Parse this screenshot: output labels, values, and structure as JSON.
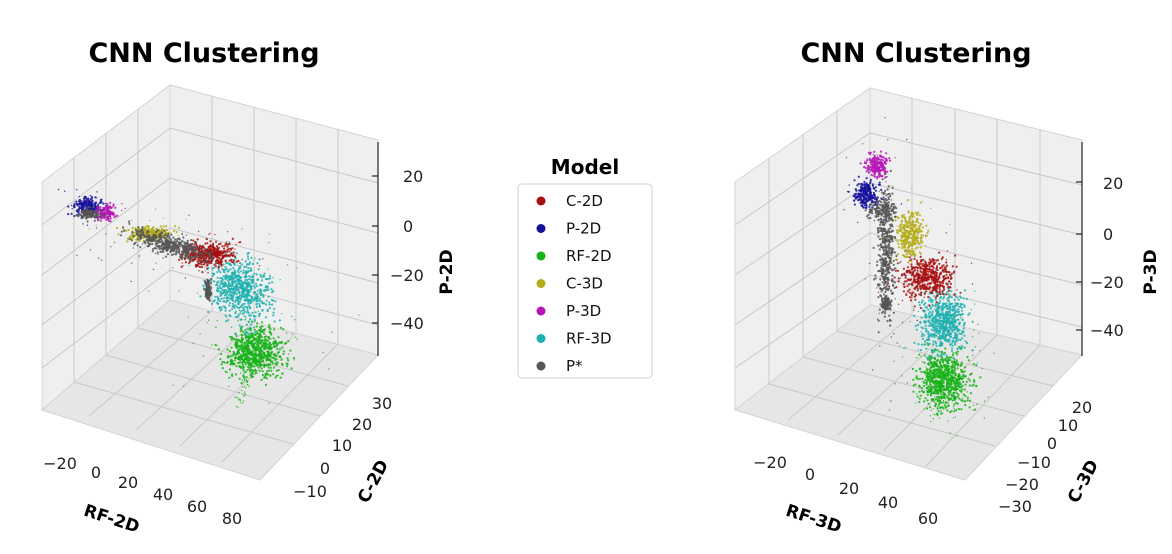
{
  "legend": {
    "title": "Model",
    "items": [
      {
        "label": "C-2D",
        "color": "#a80f0f"
      },
      {
        "label": "P-2D",
        "color": "#15129c"
      },
      {
        "label": "RF-2D",
        "color": "#16b316"
      },
      {
        "label": "C-3D",
        "color": "#b3ad17"
      },
      {
        "label": "P-3D",
        "color": "#b716b7"
      },
      {
        "label": "RF-3D",
        "color": "#1fb0b0"
      },
      {
        "label": "P*",
        "color": "#565656"
      }
    ]
  },
  "chart_data": [
    {
      "type": "scatter",
      "projection": "3d",
      "title": "CNN Clustering",
      "xlabel": "RF-2D",
      "ylabel": "C-2D",
      "zlabel": "P-2D",
      "xticks": [
        "−20",
        "0",
        "20",
        "40",
        "60",
        "80"
      ],
      "yticks": [
        "−10",
        "0",
        "10",
        "20",
        "30"
      ],
      "zticks": [
        "20",
        "0",
        "−20",
        "−40"
      ],
      "series": [
        {
          "name": "P-2D",
          "center": [
            -25,
            20,
            10
          ]
        },
        {
          "name": "P-3D",
          "center": [
            -18,
            18,
            9
          ]
        },
        {
          "name": "C-3D",
          "center": [
            0,
            10,
            0
          ]
        },
        {
          "name": "C-2D",
          "center": [
            28,
            8,
            -8
          ]
        },
        {
          "name": "RF-3D",
          "center": [
            42,
            6,
            -22
          ]
        },
        {
          "name": "RF-2D",
          "center": [
            55,
            2,
            -45
          ]
        },
        {
          "name": "P*",
          "center": [
            10,
            8,
            -5
          ]
        }
      ]
    },
    {
      "type": "scatter",
      "projection": "3d",
      "title": "CNN Clustering",
      "xlabel": "RF-3D",
      "ylabel": "C-3D",
      "zlabel": "P-3D",
      "xticks": [
        "−20",
        "0",
        "20",
        "40",
        "60"
      ],
      "yticks": [
        "−30",
        "−20",
        "−10",
        "0",
        "10",
        "20"
      ],
      "zticks": [
        "20",
        "0",
        "−20",
        "−40"
      ],
      "series": [
        {
          "name": "P-3D",
          "center": [
            -18,
            18,
            26
          ]
        },
        {
          "name": "P-2D",
          "center": [
            -22,
            14,
            16
          ]
        },
        {
          "name": "C-3D",
          "center": [
            2,
            10,
            2
          ]
        },
        {
          "name": "C-2D",
          "center": [
            12,
            6,
            -14
          ]
        },
        {
          "name": "RF-3D",
          "center": [
            20,
            2,
            -30
          ]
        },
        {
          "name": "RF-2D",
          "center": [
            30,
            -2,
            -48
          ]
        },
        {
          "name": "P*",
          "center": [
            -10,
            10,
            -10
          ]
        }
      ]
    }
  ]
}
